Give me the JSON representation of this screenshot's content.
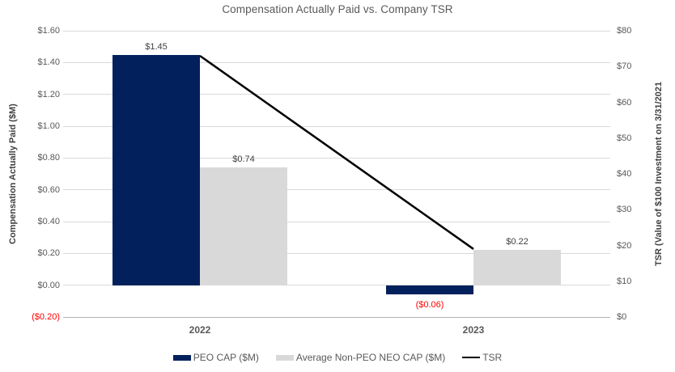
{
  "title": "Compensation Actually Paid vs. Company TSR",
  "chart_data": {
    "type": "bar+line combo",
    "categories": [
      "2022",
      "2023"
    ],
    "series": [
      {
        "name": "PEO CAP ($M)",
        "type": "bar",
        "axis": "left",
        "color": "#02215c",
        "values": [
          1.45,
          -0.06
        ],
        "data_labels": [
          "$1.45",
          "($0.06)"
        ]
      },
      {
        "name": "Average Non-PEO NEO CAP ($M)",
        "type": "bar",
        "axis": "left",
        "color": "#d9d9d9",
        "values": [
          0.74,
          0.22
        ],
        "data_labels": [
          "$0.74",
          "$0.22"
        ]
      },
      {
        "name": "TSR",
        "type": "line",
        "axis": "right",
        "color": "#000000",
        "values": [
          73,
          19
        ],
        "data_labels": [
          "",
          ""
        ]
      }
    ],
    "left_axis": {
      "title": "Compensation Actually Paid ($M)",
      "min": -0.2,
      "max": 1.6,
      "ticks": [
        {
          "label": "$1.60",
          "value": 1.6
        },
        {
          "label": "$1.40",
          "value": 1.4
        },
        {
          "label": "$1.20",
          "value": 1.2
        },
        {
          "label": "$1.00",
          "value": 1.0
        },
        {
          "label": "$0.80",
          "value": 0.8
        },
        {
          "label": "$0.60",
          "value": 0.6
        },
        {
          "label": "$0.40",
          "value": 0.4
        },
        {
          "label": "$0.20",
          "value": 0.2
        },
        {
          "label": "$0.00",
          "value": 0.0
        },
        {
          "label": "($0.20)",
          "value": -0.2,
          "color": "#ff0000"
        }
      ]
    },
    "right_axis": {
      "title": "TSR (Value of $100 Investment on 3/31/2021",
      "min": 0,
      "max": 80,
      "ticks": [
        {
          "label": "$80",
          "value": 80
        },
        {
          "label": "$70",
          "value": 70
        },
        {
          "label": "$60",
          "value": 60
        },
        {
          "label": "$50",
          "value": 50
        },
        {
          "label": "$40",
          "value": 40
        },
        {
          "label": "$30",
          "value": 30
        },
        {
          "label": "$20",
          "value": 20
        },
        {
          "label": "$10",
          "value": 10
        },
        {
          "label": "$0",
          "value": 0
        }
      ]
    },
    "legend": [
      {
        "label": "PEO CAP ($M)",
        "swatch": "bar",
        "color": "#02215c"
      },
      {
        "label": "Average Non-PEO NEO CAP ($M)",
        "swatch": "bar",
        "color": "#d9d9d9"
      },
      {
        "label": "TSR",
        "swatch": "line",
        "color": "#000000"
      }
    ],
    "colors": {
      "negative_label": "#ff0000",
      "grid": "#d9d9d9",
      "axis_line": "#b3b3b3",
      "tick_label": "#595959",
      "data_label": "#404040"
    },
    "layout": {
      "gridlines": "horizontal only",
      "legend_position": "bottom",
      "line_width": 2.5
    }
  }
}
